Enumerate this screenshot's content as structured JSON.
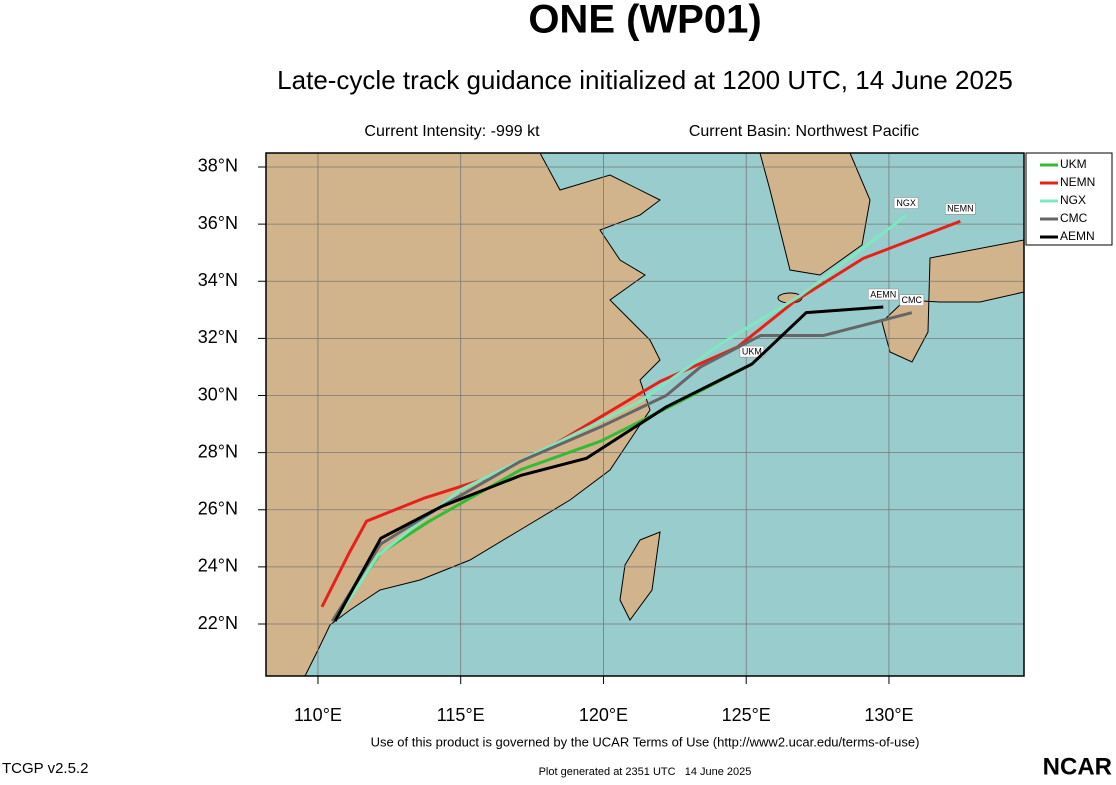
{
  "chart_data": {
    "type": "track",
    "title": "ONE (WP01)",
    "subtitle": "Late-cycle track guidance initialized at 1200 UTC, 14 June 2025",
    "intensity_text": "Current Intensity: -999 kt",
    "basin_text": "Current Basin: Northwest Pacific",
    "xlim": [
      108.18,
      134.73
    ],
    "ylim": [
      20.18,
      38.49
    ],
    "xticks": [
      {
        "value": 110,
        "label": "110°E"
      },
      {
        "value": 115,
        "label": "115°E"
      },
      {
        "value": 120,
        "label": "120°E"
      },
      {
        "value": 125,
        "label": "125°E"
      },
      {
        "value": 130,
        "label": "130°E"
      }
    ],
    "yticks": [
      {
        "value": 22,
        "label": "22°N"
      },
      {
        "value": 24,
        "label": "24°N"
      },
      {
        "value": 26,
        "label": "26°N"
      },
      {
        "value": 28,
        "label": "28°N"
      },
      {
        "value": 30,
        "label": "30°N"
      },
      {
        "value": 32,
        "label": "32°N"
      },
      {
        "value": 34,
        "label": "34°N"
      },
      {
        "value": 36,
        "label": "36°N"
      },
      {
        "value": 38,
        "label": "38°N"
      }
    ],
    "grid": true,
    "legend": "upper right",
    "series": [
      {
        "name": "UKM",
        "color": "#33bb33",
        "x": [
          110.6,
          112.2,
          113.9,
          117.1,
          119.9,
          122.7,
          125.2
        ],
        "y": [
          22.2,
          24.5,
          25.6,
          27.4,
          28.4,
          29.8,
          31.1
        ]
      },
      {
        "name": "NEMN",
        "color": "#e8201a",
        "x": [
          110.14,
          111.1,
          111.7,
          113.7,
          115.9,
          118.3,
          122.0,
          124.7,
          126.7,
          129.1,
          132.5
        ],
        "y": [
          22.6,
          24.5,
          25.6,
          26.4,
          27.1,
          28.3,
          30.5,
          31.7,
          33.3,
          34.8,
          36.1
        ]
      },
      {
        "name": "NGX",
        "color": "#7fe8c0",
        "x": [
          110.6,
          112.1,
          115.0,
          118.5,
          121.3,
          124.1,
          126.9,
          130.6
        ],
        "y": [
          22.1,
          24.4,
          26.7,
          28.4,
          29.8,
          31.8,
          33.5,
          36.3
        ]
      },
      {
        "name": "CMC",
        "color": "#666666",
        "x": [
          110.5,
          112.2,
          114.3,
          117.1,
          119.9,
          122.2,
          123.4,
          125.5,
          127.7,
          130.8
        ],
        "y": [
          22.1,
          24.8,
          26.1,
          27.7,
          28.9,
          30.0,
          31.0,
          32.1,
          32.1,
          32.9
        ]
      },
      {
        "name": "AEMN",
        "color": "#000000",
        "x": [
          110.6,
          112.2,
          114.3,
          117.1,
          119.4,
          122.2,
          125.2,
          127.1,
          129.8
        ],
        "y": [
          22.1,
          25.0,
          26.1,
          27.2,
          27.8,
          29.6,
          31.1,
          32.9,
          33.1
        ]
      }
    ],
    "terms_text": "Use of this product is governed by the UCAR Terms of Use (http://www2.ucar.edu/terms-of-use)",
    "version_text": "TCGP v2.5.2",
    "generated_text": "Plot generated at 2351 UTC   14 June 2025",
    "logo_text": "NCAR"
  }
}
